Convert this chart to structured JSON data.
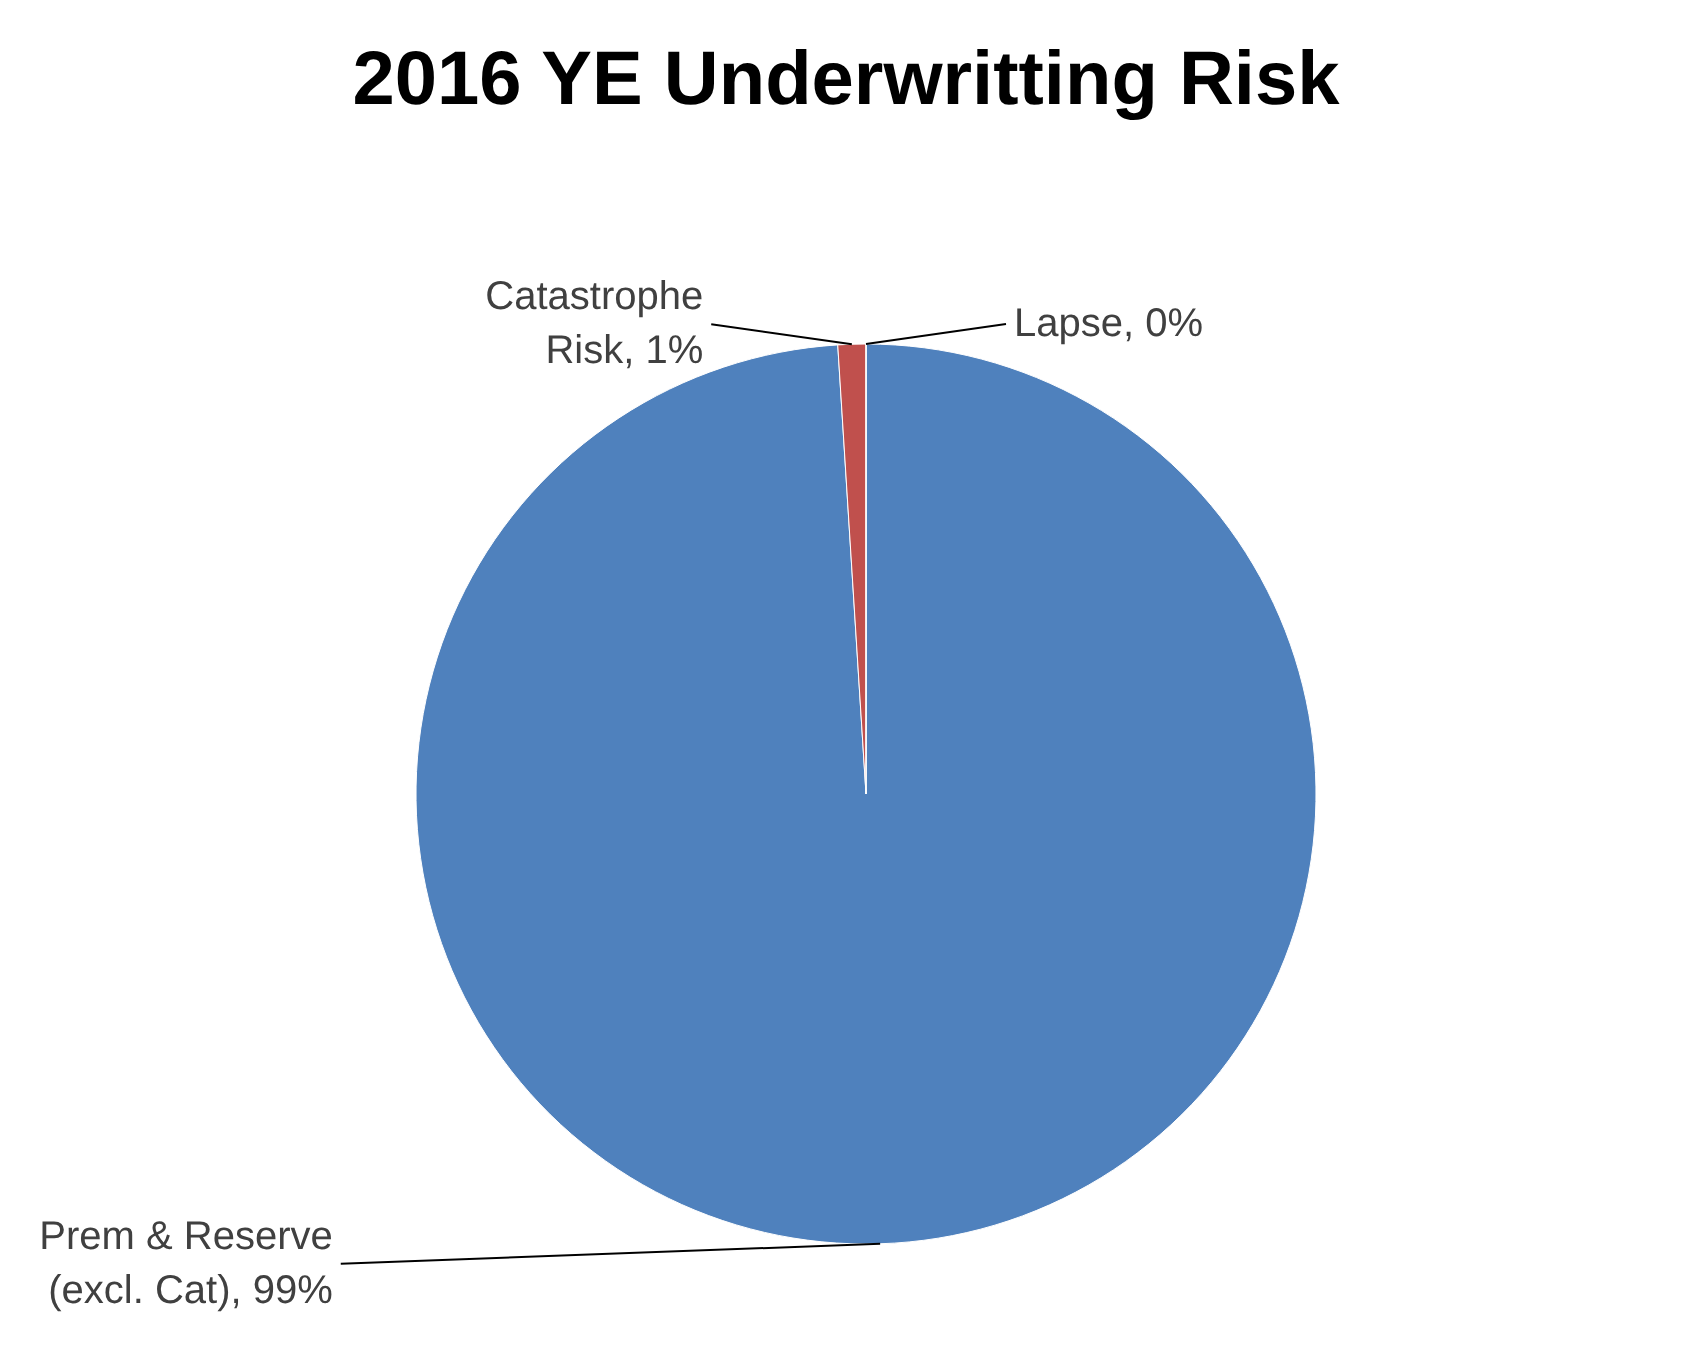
{
  "chart_data": {
    "type": "pie",
    "title": "2016 YE Underwritting Risk",
    "categories": [
      "Prem & Reserve (excl. Cat)",
      "Catastrophe Risk",
      "Lapse"
    ],
    "values": [
      99,
      1,
      0
    ],
    "value_labels": [
      "99%",
      "1%",
      "0%"
    ],
    "colors": [
      "#4f81bd",
      "#c0504d",
      "#9bbb59"
    ]
  }
}
